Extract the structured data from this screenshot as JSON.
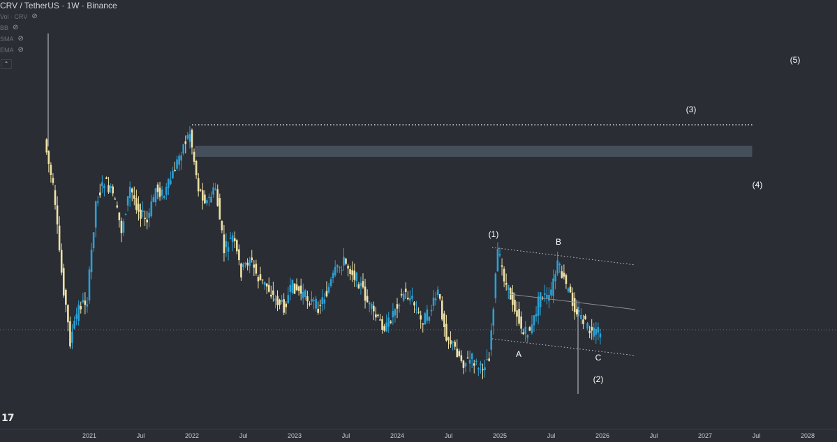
{
  "legend": {
    "title": "CRV / TetherUS · 1W · Binance",
    "indicators": [
      "Vol · CRV",
      "BB",
      "SMA",
      "EMA"
    ],
    "eye_icon": "eye-off-icon",
    "collapse_glyph": "⌃"
  },
  "logo_text": "17",
  "colors": {
    "background": "#2a2d33",
    "up_candle": "#2aa0d6",
    "down_candle": "#efe2a8",
    "zone": "#4a5563",
    "annotation": "#ffffff",
    "axis_text": "#c9ccd2"
  },
  "chart_data": {
    "type": "candlestick",
    "x_tick_labels": [
      "2021",
      "Jul",
      "2022",
      "Jul",
      "2023",
      "Jul",
      "2024",
      "Jul",
      "2025",
      "Jul",
      "2026",
      "Jul",
      "2027",
      "Jul",
      "2028"
    ],
    "x_ticks": [
      "2021-01",
      "2021-07",
      "2022-01",
      "2022-07",
      "2023-01",
      "2023-07",
      "2024-01",
      "2024-07",
      "2025-01",
      "2025-07",
      "2026-01",
      "2026-07",
      "2027-01",
      "2027-07",
      "2028-01"
    ],
    "x_range": [
      "2020-08",
      "2028-03"
    ],
    "grid": false,
    "price_path": [
      [
        "2020-08",
        200
      ],
      [
        "2020-09",
        270
      ],
      [
        "2020-10",
        390
      ],
      [
        "2020-11",
        490
      ],
      [
        "2020-12",
        440
      ],
      [
        "2021-01",
        430
      ],
      [
        "2021-02",
        290
      ],
      [
        "2021-03",
        260
      ],
      [
        "2021-04",
        280
      ],
      [
        "2021-05",
        330
      ],
      [
        "2021-06",
        270
      ],
      [
        "2021-07",
        300
      ],
      [
        "2021-08",
        320
      ],
      [
        "2021-09",
        270
      ],
      [
        "2021-10",
        280
      ],
      [
        "2021-11",
        250
      ],
      [
        "2021-12",
        215
      ],
      [
        "2022-01",
        190
      ],
      [
        "2022-02",
        270
      ],
      [
        "2022-03",
        290
      ],
      [
        "2022-04",
        270
      ],
      [
        "2022-05",
        360
      ],
      [
        "2022-06",
        340
      ],
      [
        "2022-07",
        390
      ],
      [
        "2022-08",
        370
      ],
      [
        "2022-09",
        400
      ],
      [
        "2022-10",
        410
      ],
      [
        "2022-11",
        430
      ],
      [
        "2022-12",
        440
      ],
      [
        "2023-01",
        410
      ],
      [
        "2023-02",
        420
      ],
      [
        "2023-03",
        430
      ],
      [
        "2023-04",
        440
      ],
      [
        "2023-05",
        420
      ],
      [
        "2023-06",
        390
      ],
      [
        "2023-07",
        375
      ],
      [
        "2023-08",
        390
      ],
      [
        "2023-09",
        410
      ],
      [
        "2023-10",
        440
      ],
      [
        "2023-11",
        460
      ],
      [
        "2023-12",
        470
      ],
      [
        "2024-01",
        440
      ],
      [
        "2024-02",
        420
      ],
      [
        "2024-03",
        430
      ],
      [
        "2024-04",
        460
      ],
      [
        "2024-05",
        450
      ],
      [
        "2024-06",
        420
      ],
      [
        "2024-07",
        480
      ],
      [
        "2024-08",
        500
      ],
      [
        "2024-09",
        520
      ],
      [
        "2024-10",
        515
      ],
      [
        "2024-11",
        530
      ],
      [
        "2024-12",
        510
      ],
      [
        "2025-01",
        360
      ],
      [
        "2025-02",
        410
      ],
      [
        "2025-03",
        440
      ],
      [
        "2025-04",
        480
      ],
      [
        "2025-05",
        470
      ],
      [
        "2025-06",
        420
      ],
      [
        "2025-07",
        430
      ],
      [
        "2025-08",
        380
      ],
      [
        "2025-09",
        410
      ],
      [
        "2025-10",
        440
      ],
      [
        "2025-11",
        460
      ],
      [
        "2025-12",
        480
      ],
      [
        "2026-01",
        475
      ]
    ],
    "horizontal_levels": [
      {
        "name": "dotted_top",
        "from": "2022-01",
        "to": "2027-07",
        "style": "dotted"
      },
      {
        "name": "zone",
        "from": "2022-01",
        "to": "2027-07",
        "style": "band"
      }
    ],
    "wave_labels": [
      {
        "text": "(1)",
        "at": "2025-01"
      },
      {
        "text": "B",
        "at": "2025-07"
      },
      {
        "text": "A",
        "at": "2025-03"
      },
      {
        "text": "C",
        "at": "2025-12"
      },
      {
        "text": "(2)",
        "at": "2025-12"
      },
      {
        "text": "(3)",
        "at": "2026-10"
      },
      {
        "text": "(4)",
        "at": "2027-08"
      },
      {
        "text": "(5)",
        "at": "2027-12"
      }
    ]
  }
}
